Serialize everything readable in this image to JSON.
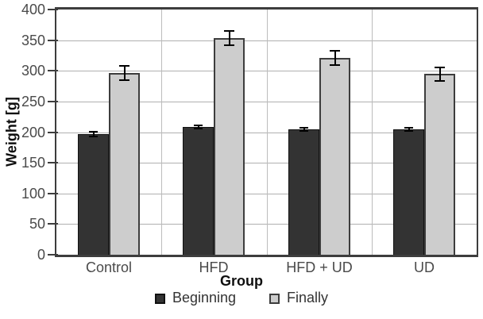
{
  "chart_data": {
    "type": "bar",
    "title": "",
    "xlabel": "Group",
    "ylabel": "Weight [g]",
    "categories": [
      "Control",
      "HFD",
      "HFD + UD",
      "UD"
    ],
    "series": [
      {
        "name": "Beginning",
        "color": "#333333",
        "border_color": "#111111",
        "values": [
          197,
          208,
          204,
          204
        ],
        "errors": [
          5,
          4,
          4,
          4
        ]
      },
      {
        "name": "Finally",
        "color": "#cdcdcd",
        "border_color": "#3d3d3d",
        "values": [
          296,
          353,
          321,
          295
        ],
        "errors": [
          13,
          13,
          13,
          12
        ]
      }
    ],
    "ylim": [
      0,
      400
    ],
    "y_ticks": [
      0,
      50,
      100,
      150,
      200,
      250,
      300,
      350,
      400
    ],
    "grid": true,
    "legend_position": "bottom"
  },
  "style_colors": {
    "axis": "#3d3d3d",
    "gridline": "#b0b0b0",
    "separator": "#bcbcbc",
    "tick_label": "#4a4a4a",
    "error_bar": "#000000",
    "background": "#ffffff"
  }
}
